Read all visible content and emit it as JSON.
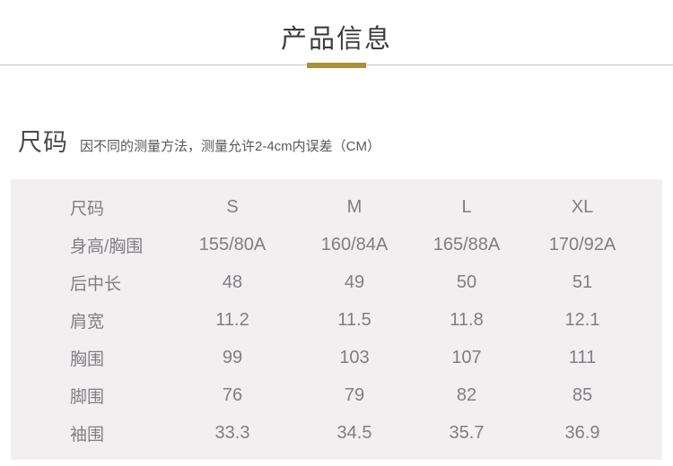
{
  "header": {
    "title": "产品信息"
  },
  "section": {
    "heading": "尺码",
    "note": "因不同的测量方法，测量允许2-4cm内误差（CM）"
  },
  "size_table": {
    "columns": [
      "尺码",
      "S",
      "M",
      "L",
      "XL"
    ],
    "rows": [
      {
        "label": "身高/胸围",
        "values": [
          "155/80A",
          "160/84A",
          "165/88A",
          "170/92A"
        ]
      },
      {
        "label": "后中长",
        "values": [
          "48",
          "49",
          "50",
          "51"
        ]
      },
      {
        "label": "肩宽",
        "values": [
          "11.2",
          "11.5",
          "11.8",
          "12.1"
        ]
      },
      {
        "label": "胸围",
        "values": [
          "99",
          "103",
          "107",
          "111"
        ]
      },
      {
        "label": "脚围",
        "values": [
          "76",
          "79",
          "82",
          "85"
        ]
      },
      {
        "label": "袖围",
        "values": [
          "33.3",
          "34.5",
          "35.7",
          "36.9"
        ]
      }
    ]
  },
  "colors": {
    "accent_gold": "#ab9136",
    "divider_line": "#c9c9c9",
    "table_background": "#f1eff0",
    "table_text": "#807e82",
    "title_text": "#3c3c3c"
  }
}
